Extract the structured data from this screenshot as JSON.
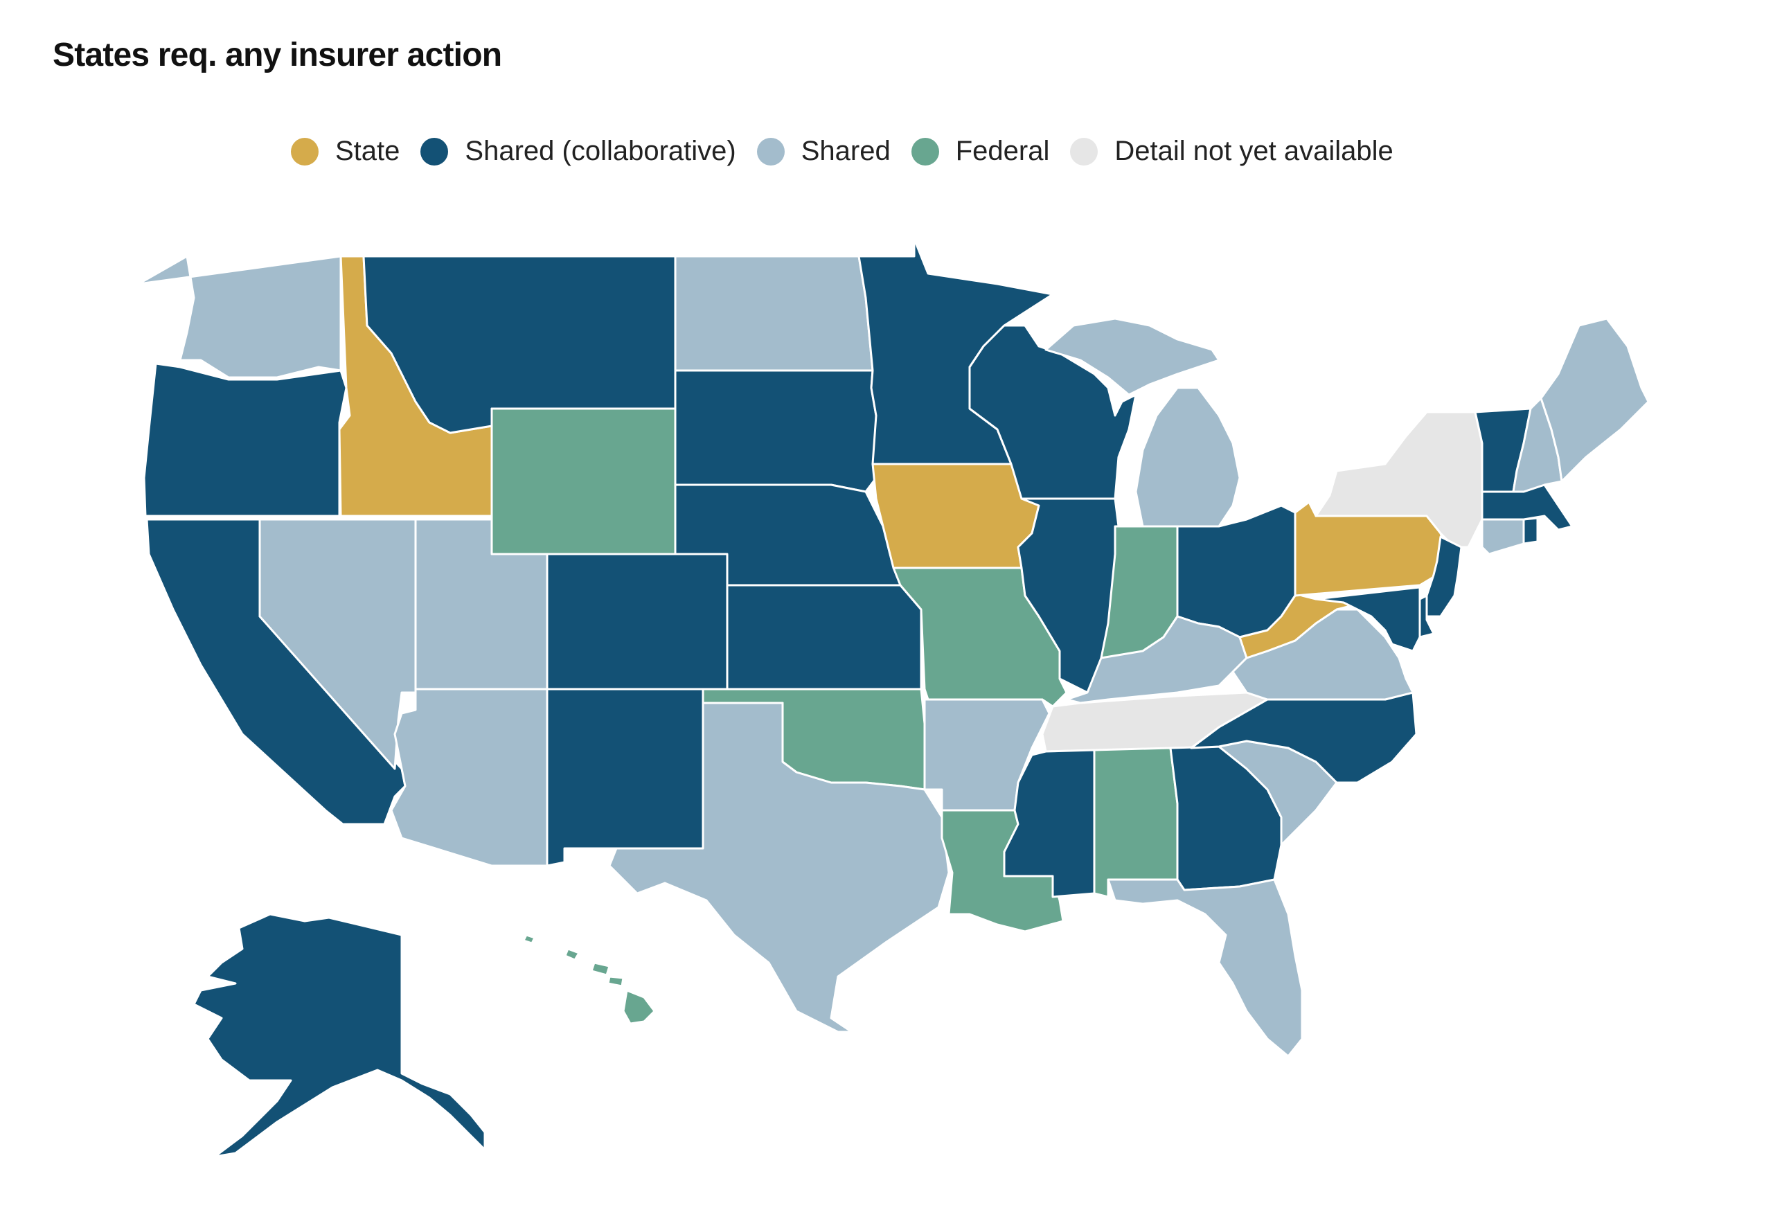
{
  "title": "States req. any insurer action",
  "legend": [
    {
      "label": "State",
      "color": "#d5ab4b"
    },
    {
      "label": "Shared (collaborative)",
      "color": "#135175"
    },
    {
      "label": "Shared",
      "color": "#a3bccc"
    },
    {
      "label": "Federal",
      "color": "#68a690"
    },
    {
      "label": "Detail not yet available",
      "color": "#e6e6e6"
    }
  ],
  "colors": {
    "state": "#d5ab4b",
    "shared_collab": "#135175",
    "shared": "#a3bccc",
    "federal": "#68a690",
    "na": "#e6e6e6"
  },
  "states": {
    "WA": "shared",
    "OR": "shared_collab",
    "CA": "shared_collab",
    "ID": "state",
    "NV": "shared",
    "MT": "shared_collab",
    "WY": "federal",
    "UT": "shared",
    "AZ": "shared",
    "CO": "shared_collab",
    "NM": "shared_collab",
    "ND": "shared",
    "SD": "shared_collab",
    "NE": "shared_collab",
    "KS": "shared_collab",
    "OK": "federal",
    "TX": "shared",
    "MN": "shared_collab",
    "IA": "state",
    "MO": "federal",
    "AR": "shared",
    "LA": "federal",
    "WI": "shared_collab",
    "IL": "shared_collab",
    "MI": "shared",
    "IN": "federal",
    "OH": "shared_collab",
    "KY": "shared",
    "TN": "na",
    "MS": "shared_collab",
    "AL": "federal",
    "GA": "shared_collab",
    "FL": "shared",
    "SC": "shared",
    "NC": "shared_collab",
    "VA": "shared",
    "WV": "state",
    "PA": "state",
    "NY": "na",
    "VT": "shared_collab",
    "NH": "shared",
    "ME": "shared",
    "MA": "shared_collab",
    "RI": "shared_collab",
    "CT": "shared",
    "NJ": "shared_collab",
    "DE": "shared_collab",
    "MD": "shared_collab",
    "AK": "shared_collab",
    "HI": "federal"
  }
}
